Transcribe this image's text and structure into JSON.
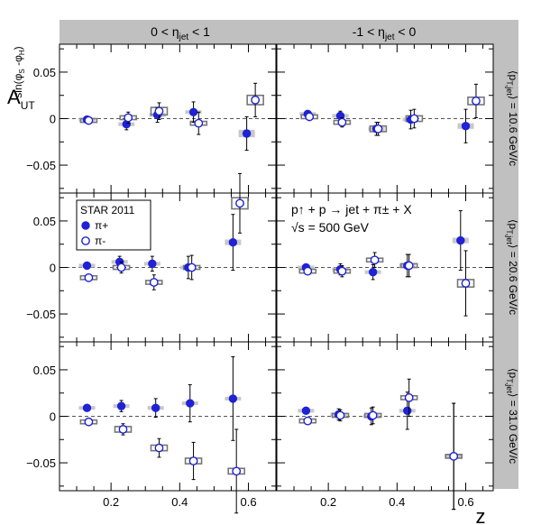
{
  "chart_data": {
    "type": "scatter",
    "experiment": "STAR 2011",
    "reaction_line1": "p↑ + p → jet + π± + X",
    "reaction_line2": "√s = 500 GeV",
    "ylabel": "A_UT^{sin(φS-φH)}",
    "ylabel_main": "A",
    "ylabel_sub": "UT",
    "ylabel_sup": "sin(φS -φH)",
    "xlabel": "z",
    "xlim": [
      0.05,
      0.68
    ],
    "xticks": [
      0.2,
      0.4,
      0.6
    ],
    "xtick_labels": [
      "0.2",
      "0.4",
      "0.6"
    ],
    "ylim": [
      -0.08,
      0.08
    ],
    "yticks": [
      -0.05,
      0,
      0.05
    ],
    "ytick_labels": [
      "−0.05",
      "0",
      "0.05"
    ],
    "column_labels": [
      "0 < ηjet < 1",
      "-1 < ηjet < 0"
    ],
    "row_labels": [
      "⟨pT,jet⟩ = 10.6 GeV/c",
      "⟨pT,jet⟩ = 20.6 GeV/c",
      "⟨pT,jet⟩ = 31.0 GeV/c"
    ],
    "legend": {
      "title": "STAR 2011",
      "entries": [
        {
          "name": "π+",
          "marker": "filled-circle",
          "color": "#1f22d6"
        },
        {
          "name": "π-",
          "marker": "open-circle",
          "color": "#1f22d6"
        }
      ]
    },
    "panels": [
      {
        "row": 0,
        "col": 0,
        "plus": [
          {
            "x": 0.13,
            "y": -0.001,
            "err": 0.003,
            "sys": 0.002
          },
          {
            "x": 0.245,
            "y": -0.006,
            "err": 0.006,
            "sys": 0.002
          },
          {
            "x": 0.335,
            "y": 0.004,
            "err": 0.008,
            "sys": 0.002
          },
          {
            "x": 0.44,
            "y": 0.007,
            "err": 0.011,
            "sys": 0.002
          },
          {
            "x": 0.595,
            "y": -0.016,
            "err": 0.018,
            "sys": 0.004
          }
        ],
        "minus": [
          {
            "x": 0.135,
            "y": -0.002,
            "err": 0.003,
            "sys": 0.002
          },
          {
            "x": 0.25,
            "y": 0.001,
            "err": 0.006,
            "sys": 0.002
          },
          {
            "x": 0.34,
            "y": 0.008,
            "err": 0.009,
            "sys": 0.004
          },
          {
            "x": 0.455,
            "y": -0.005,
            "err": 0.012,
            "sys": 0.002
          },
          {
            "x": 0.62,
            "y": 0.02,
            "err": 0.018,
            "sys": 0.005
          }
        ]
      },
      {
        "row": 0,
        "col": 1,
        "plus": [
          {
            "x": 0.14,
            "y": 0.005,
            "err": 0.003,
            "sys": 0.002
          },
          {
            "x": 0.235,
            "y": 0.003,
            "err": 0.005,
            "sys": 0.002
          },
          {
            "x": 0.34,
            "y": -0.011,
            "err": 0.007,
            "sys": 0.002
          },
          {
            "x": 0.44,
            "y": -0.001,
            "err": 0.01,
            "sys": 0.002
          },
          {
            "x": 0.6,
            "y": -0.008,
            "err": 0.018,
            "sys": 0.003
          }
        ],
        "minus": [
          {
            "x": 0.145,
            "y": 0.002,
            "err": 0.003,
            "sys": 0.002
          },
          {
            "x": 0.24,
            "y": -0.004,
            "err": 0.005,
            "sys": 0.002
          },
          {
            "x": 0.345,
            "y": -0.011,
            "err": 0.007,
            "sys": 0.003
          },
          {
            "x": 0.45,
            "y": 0.0,
            "err": 0.01,
            "sys": 0.003
          },
          {
            "x": 0.63,
            "y": 0.019,
            "err": 0.018,
            "sys": 0.004
          }
        ]
      },
      {
        "row": 1,
        "col": 0,
        "plus": [
          {
            "x": 0.13,
            "y": 0.002,
            "err": 0.003,
            "sys": 0.002
          },
          {
            "x": 0.225,
            "y": 0.006,
            "err": 0.006,
            "sys": 0.002
          },
          {
            "x": 0.32,
            "y": 0.004,
            "err": 0.008,
            "sys": 0.002
          },
          {
            "x": 0.425,
            "y": 0.0,
            "err": 0.012,
            "sys": 0.002
          },
          {
            "x": 0.555,
            "y": 0.027,
            "err": 0.03,
            "sys": 0.003
          }
        ],
        "minus": [
          {
            "x": 0.135,
            "y": -0.011,
            "err": 0.003,
            "sys": 0.002
          },
          {
            "x": 0.23,
            "y": 0.0,
            "err": 0.006,
            "sys": 0.002
          },
          {
            "x": 0.325,
            "y": -0.016,
            "err": 0.008,
            "sys": 0.002
          },
          {
            "x": 0.435,
            "y": 0.0,
            "err": 0.013,
            "sys": 0.002
          },
          {
            "x": 0.575,
            "y": 0.069,
            "err": 0.032,
            "sys": 0.006
          }
        ]
      },
      {
        "row": 1,
        "col": 1,
        "plus": [
          {
            "x": 0.135,
            "y": 0.0,
            "err": 0.003,
            "sys": 0.002
          },
          {
            "x": 0.235,
            "y": -0.002,
            "err": 0.006,
            "sys": 0.002
          },
          {
            "x": 0.33,
            "y": -0.005,
            "err": 0.008,
            "sys": 0.002
          },
          {
            "x": 0.43,
            "y": 0.002,
            "err": 0.012,
            "sys": 0.002
          },
          {
            "x": 0.585,
            "y": 0.029,
            "err": 0.032,
            "sys": 0.003
          }
        ],
        "minus": [
          {
            "x": 0.14,
            "y": -0.004,
            "err": 0.003,
            "sys": 0.002
          },
          {
            "x": 0.24,
            "y": -0.004,
            "err": 0.006,
            "sys": 0.002
          },
          {
            "x": 0.335,
            "y": 0.008,
            "err": 0.008,
            "sys": 0.002
          },
          {
            "x": 0.435,
            "y": 0.002,
            "err": 0.012,
            "sys": 0.002
          },
          {
            "x": 0.6,
            "y": -0.017,
            "err": 0.035,
            "sys": 0.004
          }
        ]
      },
      {
        "row": 2,
        "col": 0,
        "plus": [
          {
            "x": 0.13,
            "y": 0.009,
            "err": 0.003,
            "sys": 0.002
          },
          {
            "x": 0.23,
            "y": 0.011,
            "err": 0.006,
            "sys": 0.002
          },
          {
            "x": 0.33,
            "y": 0.009,
            "err": 0.01,
            "sys": 0.002
          },
          {
            "x": 0.43,
            "y": 0.014,
            "err": 0.02,
            "sys": 0.002
          },
          {
            "x": 0.555,
            "y": 0.019,
            "err": 0.045,
            "sys": 0.002
          }
        ],
        "minus": [
          {
            "x": 0.135,
            "y": -0.006,
            "err": 0.003,
            "sys": 0.002
          },
          {
            "x": 0.235,
            "y": -0.014,
            "err": 0.006,
            "sys": 0.003
          },
          {
            "x": 0.34,
            "y": -0.034,
            "err": 0.01,
            "sys": 0.003
          },
          {
            "x": 0.44,
            "y": -0.048,
            "err": 0.02,
            "sys": 0.003
          },
          {
            "x": 0.565,
            "y": -0.059,
            "err": 0.045,
            "sys": 0.003
          }
        ]
      },
      {
        "row": 2,
        "col": 1,
        "plus": [
          {
            "x": 0.135,
            "y": 0.006,
            "err": 0.003,
            "sys": 0.002
          },
          {
            "x": 0.23,
            "y": 0.002,
            "err": 0.006,
            "sys": 0.002
          },
          {
            "x": 0.325,
            "y": 0.0,
            "err": 0.009,
            "sys": 0.002
          },
          {
            "x": 0.43,
            "y": 0.006,
            "err": 0.02,
            "sys": 0.002
          },
          {
            "x": 0.565,
            "y": -0.043,
            "err": 0.057,
            "sys": 0.002
          }
        ],
        "minus": [
          {
            "x": 0.14,
            "y": -0.005,
            "err": 0.003,
            "sys": 0.002
          },
          {
            "x": 0.235,
            "y": 0.001,
            "err": 0.006,
            "sys": 0.002
          },
          {
            "x": 0.33,
            "y": 0.001,
            "err": 0.009,
            "sys": 0.002
          },
          {
            "x": 0.435,
            "y": 0.02,
            "err": 0.02,
            "sys": 0.002
          },
          {
            "x": 0.565,
            "y": -0.043,
            "err": 0.057,
            "sys": 0.002
          }
        ]
      }
    ]
  }
}
